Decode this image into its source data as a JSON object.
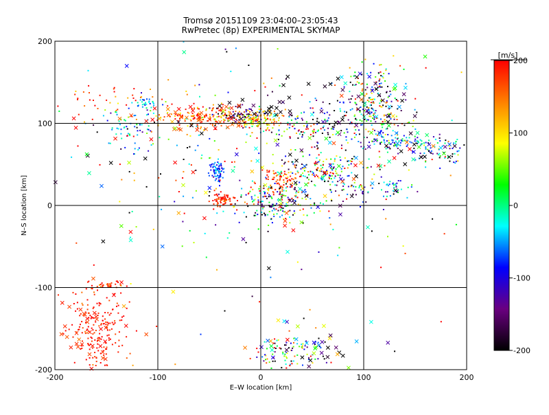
{
  "chart_data": {
    "type": "scatter",
    "title": "Tromsø 20151109 23:04:00–23:05:43",
    "subtitle": "RwPretec (8p) EXPERIMENTAL SKYMAP",
    "xlabel": "E–W location [km]",
    "ylabel": "N–S location [km]",
    "xlim": [
      -200,
      200
    ],
    "ylim": [
      -200,
      200
    ],
    "x_ticks": [
      -200,
      -100,
      0,
      100,
      200
    ],
    "y_ticks": [
      -200,
      -100,
      0,
      100,
      200
    ],
    "x_tick_labels": [
      "-200",
      "-100",
      "0",
      "100",
      "200"
    ],
    "y_tick_labels": [
      "-200",
      "-100",
      "0",
      "100",
      "200"
    ],
    "grid": true,
    "colorbar": {
      "label": "[m/s]",
      "min": -200,
      "max": 200,
      "ticks": [
        200,
        100,
        0,
        -100,
        -200
      ],
      "tick_labels": [
        "200",
        "100",
        "0",
        "-100",
        "-200"
      ],
      "colors": [
        "#000000",
        "#6a0080",
        "#0000ff",
        "#00ffff",
        "#00ff00",
        "#ffff00",
        "#ff8000",
        "#ff0000"
      ]
    },
    "clusters": [
      {
        "cx": -55,
        "cy": 108,
        "sx": 22,
        "sy": 6,
        "n": 150,
        "v": 165,
        "vs": 45
      },
      {
        "cx": -20,
        "cy": 110,
        "sx": 15,
        "sy": 6,
        "n": 60,
        "v": -150,
        "vs": 60
      },
      {
        "cx": -5,
        "cy": 105,
        "sx": 12,
        "sy": 5,
        "n": 110,
        "v": 110,
        "vs": 35
      },
      {
        "cx": 30,
        "cy": 95,
        "sx": 30,
        "sy": 8,
        "n": 80,
        "v": 20,
        "vs": 160
      },
      {
        "cx": 70,
        "cy": 100,
        "sx": 18,
        "sy": 15,
        "n": 70,
        "v": -120,
        "vs": 80
      },
      {
        "cx": 110,
        "cy": 120,
        "sx": 15,
        "sy": 25,
        "n": 220,
        "v": -20,
        "vs": 140
      },
      {
        "cx": 135,
        "cy": 78,
        "sx": 20,
        "sy": 6,
        "n": 80,
        "v": -50,
        "vs": 60
      },
      {
        "cx": 170,
        "cy": 65,
        "sx": 18,
        "sy": 10,
        "n": 70,
        "v": -60,
        "vs": 120
      },
      {
        "cx": -42,
        "cy": 42,
        "sx": 4,
        "sy": 7,
        "n": 70,
        "v": -70,
        "vs": 25
      },
      {
        "cx": -38,
        "cy": 8,
        "sx": 6,
        "sy": 4,
        "n": 70,
        "v": 185,
        "vs": 20
      },
      {
        "cx": 20,
        "cy": 28,
        "sx": 10,
        "sy": 8,
        "n": 90,
        "v": 175,
        "vs": 40
      },
      {
        "cx": 15,
        "cy": 5,
        "sx": 18,
        "sy": 12,
        "n": 170,
        "v": -40,
        "vs": 110
      },
      {
        "cx": 60,
        "cy": 45,
        "sx": 18,
        "sy": 10,
        "n": 110,
        "v": 10,
        "vs": 130
      },
      {
        "cx": 85,
        "cy": 25,
        "sx": 18,
        "sy": 12,
        "n": 60,
        "v": -50,
        "vs": 120
      },
      {
        "cx": 130,
        "cy": 20,
        "sx": 10,
        "sy": 6,
        "n": 35,
        "v": -40,
        "vs": 60
      },
      {
        "cx": -125,
        "cy": 95,
        "sx": 15,
        "sy": 12,
        "n": 60,
        "v": -50,
        "vs": 60
      },
      {
        "cx": -112,
        "cy": 125,
        "sx": 6,
        "sy": 4,
        "n": 30,
        "v": -40,
        "vs": 40
      },
      {
        "cx": -150,
        "cy": 125,
        "sx": 30,
        "sy": 12,
        "n": 40,
        "v": 170,
        "vs": 40
      },
      {
        "cx": -160,
        "cy": -150,
        "sx": 15,
        "sy": 25,
        "n": 180,
        "v": 190,
        "vs": 20
      },
      {
        "cx": -150,
        "cy": -98,
        "sx": 12,
        "sy": 3,
        "n": 40,
        "v": 175,
        "vs": 30
      },
      {
        "cx": 30,
        "cy": -180,
        "sx": 18,
        "sy": 12,
        "n": 100,
        "v": -30,
        "vs": 150
      },
      {
        "cx": 0,
        "cy": 60,
        "sx": 80,
        "sy": 60,
        "n": 260,
        "v": 0,
        "vs": 170
      },
      {
        "cx": 0,
        "cy": 0,
        "sx": 200,
        "sy": 200,
        "n": 90,
        "v": 80,
        "vs": 150
      }
    ],
    "cross_markers": [
      {
        "cx": -60,
        "cy": 105,
        "sx": 30,
        "sy": 8,
        "n": 35,
        "v": 170,
        "vs": 40
      },
      {
        "cx": 10,
        "cy": 120,
        "sx": 30,
        "sy": 12,
        "n": 25,
        "v": -190,
        "vs": 20
      },
      {
        "cx": 110,
        "cy": 130,
        "sx": 25,
        "sy": 25,
        "n": 45,
        "v": -120,
        "vs": 120
      },
      {
        "cx": 150,
        "cy": 70,
        "sx": 35,
        "sy": 15,
        "n": 35,
        "v": -80,
        "vs": 150
      },
      {
        "cx": 50,
        "cy": 30,
        "sx": 35,
        "sy": 25,
        "n": 45,
        "v": -60,
        "vs": 160
      },
      {
        "cx": -165,
        "cy": -150,
        "sx": 18,
        "sy": 30,
        "n": 40,
        "v": 185,
        "vs": 25
      },
      {
        "cx": 40,
        "cy": -170,
        "sx": 30,
        "sy": 20,
        "n": 35,
        "v": -50,
        "vs": 160
      },
      {
        "cx": -80,
        "cy": 60,
        "sx": 60,
        "sy": 60,
        "n": 35,
        "v": 0,
        "vs": 170
      },
      {
        "cx": 0,
        "cy": 0,
        "sx": 200,
        "sy": 200,
        "n": 45,
        "v": 100,
        "vs": 140
      }
    ]
  }
}
